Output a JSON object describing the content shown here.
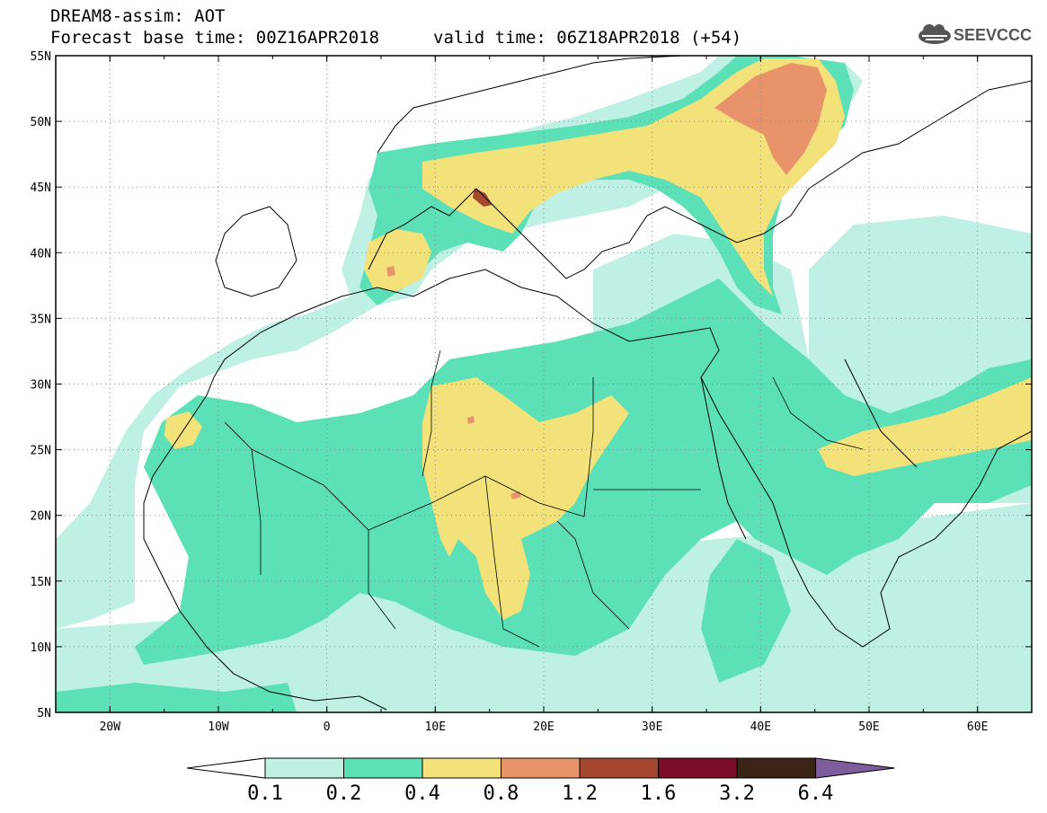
{
  "header": {
    "title_line1": "DREAM8-assim: AOT",
    "title_line2a": "Forecast base time: 00Z16APR2018",
    "title_line2b": "valid time: 06Z18APR2018 (+54)",
    "logo_text": "SEEVCCC",
    "logo_icon": "cloud-icon"
  },
  "map": {
    "lon_range": [
      -25,
      65
    ],
    "lat_range": [
      5,
      55
    ],
    "lon_ticks": [
      "20W",
      "10W",
      "0",
      "10E",
      "20E",
      "30E",
      "40E",
      "50E",
      "60E"
    ],
    "lat_ticks": [
      "55N",
      "50N",
      "45N",
      "40N",
      "35N",
      "30N",
      "25N",
      "20N",
      "15N",
      "10N",
      "5N"
    ]
  },
  "colorbar": {
    "labels": [
      "0.1",
      "0.2",
      "0.4",
      "0.8",
      "1.2",
      "1.6",
      "3.2",
      "6.4"
    ],
    "colors": [
      "#ffffff",
      "#bff0e6",
      "#5ce0b8",
      "#f3e27a",
      "#e8936a",
      "#a5462e",
      "#7b0d2a",
      "#3b2416",
      "#7f5c9c"
    ]
  },
  "legend_colors": {
    "c01": "#bff0e6",
    "c02": "#5ce0b8",
    "c04": "#f3e27a",
    "c08": "#e8936a",
    "c12": "#a5462e"
  }
}
